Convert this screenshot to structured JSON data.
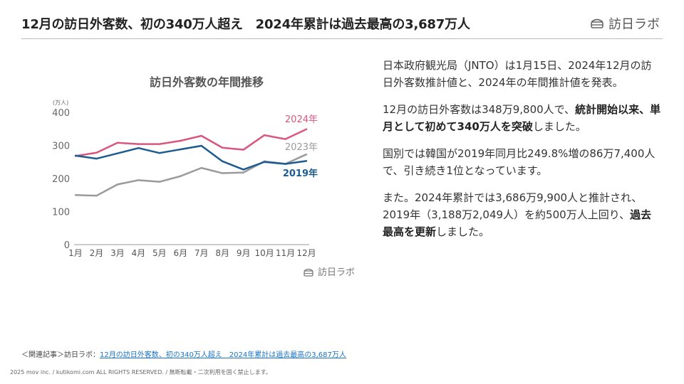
{
  "header": {
    "title": "12月の訪日外客数、初の340万人超え　2024年累計は過去最高の3,687万人",
    "brand": "訪日ラボ"
  },
  "chart_data": {
    "type": "line",
    "title": "訪日外客数の年間推移",
    "unit_label": "(万人)",
    "categories": [
      "1月",
      "2月",
      "3月",
      "4月",
      "5月",
      "6月",
      "7月",
      "8月",
      "9月",
      "10月",
      "11月",
      "12月"
    ],
    "yticks": [
      0,
      100,
      200,
      300,
      400
    ],
    "ylim": [
      0,
      400
    ],
    "grid": false,
    "legend": "inline labels at right end of lines",
    "watermark": "訪日ラボ",
    "series": [
      {
        "name": "2024年",
        "color": "#d9577f",
        "values": [
          268,
          278,
          308,
          304,
          304,
          314,
          329,
          293,
          287,
          331,
          319,
          349
        ]
      },
      {
        "name": "2023年",
        "color": "#9a9a9a",
        "values": [
          150,
          148,
          182,
          195,
          190,
          207,
          232,
          216,
          218,
          252,
          244,
          273
        ]
      },
      {
        "name": "2019年",
        "color": "#1d5b8f",
        "values": [
          269,
          260,
          276,
          292,
          277,
          288,
          299,
          252,
          227,
          250,
          244,
          253
        ]
      }
    ]
  },
  "body": {
    "p1": "日本政府観光局（JNTO）は1月15日、2024年12月の訪日外客数推計値と、2024年の年間推計値を発表。",
    "p2a": "12月の訪日外客数は348万9,800人で、",
    "p2b": "統計開始以来、単月として初めて340万人を突破",
    "p2c": "しました。",
    "p3": "国別では韓国が2019年同月比249.8%増の86万7,400人で、引き続き1位となっています。",
    "p4a": "また。2024年累計では3,686万9,900人と推計され、2019年（3,188万2,049人）を約500万人上回り、",
    "p4b": "過去最高を更新",
    "p4c": "しました。"
  },
  "related": {
    "prefix": "＜関連記事＞訪日ラボ：",
    "link_text": "12月の訪日外客数、初の340万人超え　2024年累計は過去最高の3,687万人"
  },
  "footer": {
    "copyright": "2025 mov inc. / kutikomi.com ALL RIGHTS RESERVED. / 無断転載・二次利用を固く禁止します。"
  }
}
